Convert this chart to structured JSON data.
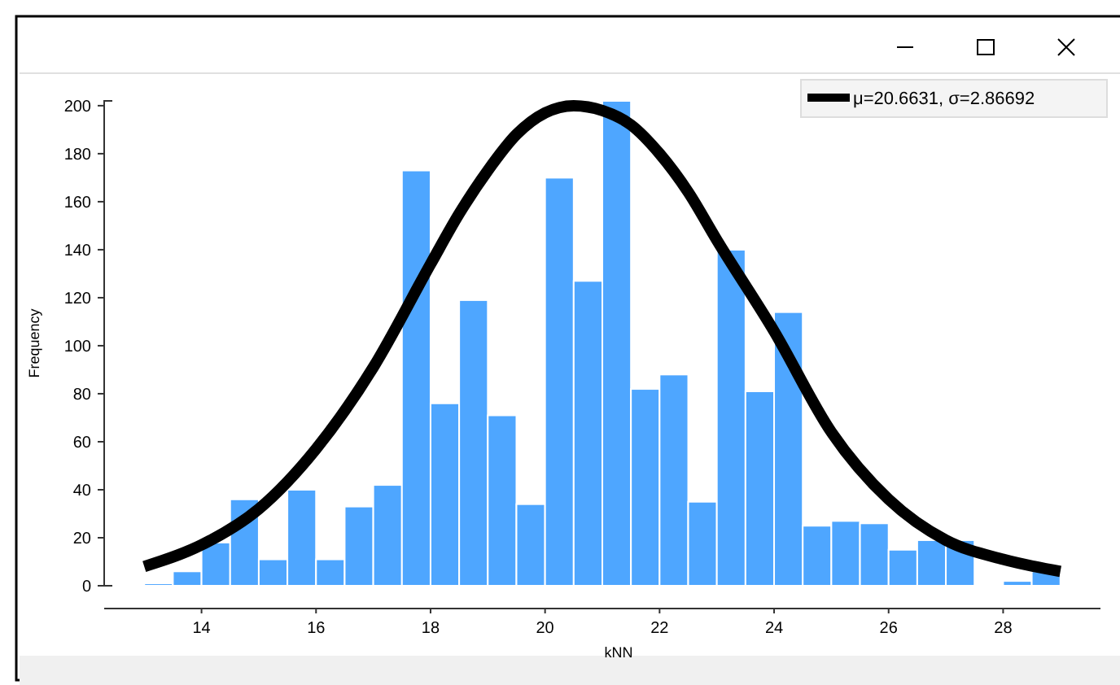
{
  "chart_data": {
    "type": "histogram",
    "xlabel": "kNN",
    "ylabel": "Frequency",
    "bins": [
      13,
      13.5,
      14,
      14.5,
      15,
      15.5,
      16,
      16.5,
      17,
      17.5,
      18,
      18.5,
      19,
      19.5,
      20,
      20.5,
      21,
      21.5,
      22,
      22.5,
      23,
      23.5,
      24,
      24.5,
      25,
      25.5,
      26,
      26.5,
      27,
      27.5,
      28,
      28.5,
      29
    ],
    "values": [
      1,
      6,
      18,
      36,
      11,
      40,
      11,
      33,
      42,
      173,
      76,
      119,
      71,
      34,
      170,
      127,
      202,
      82,
      88,
      35,
      140,
      81,
      114,
      25,
      27,
      26,
      15,
      19,
      19,
      0,
      2,
      6
    ],
    "color": "#4ea6ff",
    "series": [
      {
        "type": "line",
        "name": "μ=20.6631, σ=2.86692",
        "color": "#000000",
        "x": [
          13,
          14,
          15,
          16,
          17,
          18,
          18.5,
          19,
          19.5,
          20,
          20.5,
          21,
          21.5,
          22,
          22.5,
          23,
          24,
          25,
          26,
          27,
          28,
          29
        ],
        "values": [
          8,
          17,
          32,
          57,
          91,
          134,
          155,
          173,
          188,
          197,
          200,
          198,
          192,
          180,
          164,
          144,
          106,
          64,
          36,
          19,
          11,
          6
        ]
      }
    ],
    "xlim": [
      12.3,
      29.7
    ],
    "xticks": [
      14,
      16,
      18,
      20,
      22,
      24,
      26,
      28
    ],
    "ylim": [
      0,
      202
    ],
    "yticks": [
      0,
      20,
      40,
      60,
      80,
      100,
      120,
      140,
      160,
      180,
      200
    ],
    "grid": false,
    "legend": "top right"
  }
}
